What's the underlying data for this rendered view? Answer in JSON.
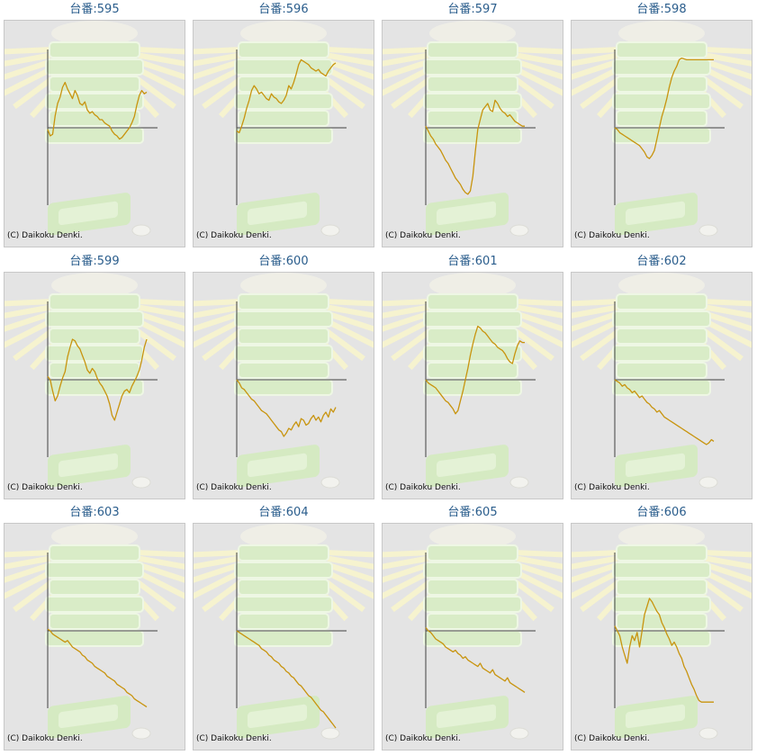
{
  "copyright": "(C) Daikoku Denki.",
  "line_color": "#c8940e",
  "axis_color": "#404040",
  "chart_data": [
    {
      "type": "line",
      "title": "台番:595",
      "x": [
        0,
        1,
        2,
        3,
        4,
        5,
        6,
        7,
        8,
        9,
        10,
        11,
        12,
        13,
        14,
        15,
        16,
        17,
        18,
        19,
        20,
        21,
        22,
        23,
        24,
        25,
        26,
        27,
        28,
        29,
        30,
        31,
        32,
        33,
        34,
        35,
        36,
        37,
        38,
        39,
        40
      ],
      "values": [
        -2,
        -10,
        -8,
        15,
        30,
        38,
        50,
        56,
        48,
        42,
        36,
        46,
        40,
        30,
        28,
        32,
        22,
        18,
        20,
        16,
        14,
        10,
        10,
        6,
        4,
        2,
        -4,
        -8,
        -10,
        -14,
        -12,
        -8,
        -4,
        0,
        6,
        14,
        28,
        40,
        46,
        42,
        44
      ]
    },
    {
      "type": "line",
      "title": "台番:596",
      "x": [
        0,
        1,
        2,
        3,
        4,
        5,
        6,
        7,
        8,
        9,
        10,
        11,
        12,
        13,
        14,
        15,
        16,
        17,
        18,
        19,
        20,
        21,
        22,
        23,
        24,
        25,
        26,
        27,
        28,
        29,
        30,
        31,
        32,
        33,
        34,
        35,
        36,
        37,
        38,
        39,
        40
      ],
      "values": [
        -4,
        -6,
        2,
        12,
        24,
        34,
        46,
        52,
        48,
        42,
        44,
        40,
        36,
        34,
        42,
        38,
        36,
        32,
        30,
        34,
        40,
        52,
        48,
        56,
        66,
        78,
        84,
        82,
        80,
        78,
        74,
        72,
        70,
        72,
        68,
        66,
        64,
        70,
        74,
        78,
        80
      ]
    },
    {
      "type": "line",
      "title": "台番:597",
      "x": [
        0,
        1,
        2,
        3,
        4,
        5,
        6,
        7,
        8,
        9,
        10,
        11,
        12,
        13,
        14,
        15,
        16,
        17,
        18,
        19,
        20,
        21,
        22,
        23,
        24,
        25,
        26,
        27,
        28,
        29,
        30,
        31,
        32,
        33,
        34,
        35,
        36,
        37,
        38,
        39,
        40
      ],
      "values": [
        2,
        -4,
        -10,
        -14,
        -20,
        -24,
        -28,
        -34,
        -40,
        -44,
        -50,
        -56,
        -62,
        -66,
        -70,
        -76,
        -80,
        -82,
        -78,
        -60,
        -30,
        -2,
        10,
        22,
        26,
        30,
        22,
        20,
        34,
        30,
        24,
        20,
        18,
        14,
        16,
        12,
        8,
        6,
        4,
        2,
        2
      ]
    },
    {
      "type": "line",
      "title": "台番:598",
      "x": [
        0,
        1,
        2,
        3,
        4,
        5,
        6,
        7,
        8,
        9,
        10,
        11,
        12,
        13,
        14,
        15,
        16,
        17,
        18,
        19,
        20,
        21,
        22,
        23,
        24,
        25,
        26,
        27,
        28,
        29,
        30,
        31,
        32,
        33,
        34,
        35,
        36,
        37,
        38,
        39,
        40
      ],
      "values": [
        0,
        -2,
        -6,
        -8,
        -10,
        -12,
        -14,
        -16,
        -18,
        -20,
        -22,
        -26,
        -30,
        -36,
        -38,
        -34,
        -28,
        -14,
        0,
        14,
        24,
        36,
        50,
        62,
        70,
        76,
        84,
        86,
        85,
        84,
        84,
        84,
        84,
        84,
        84,
        84,
        84,
        84,
        84,
        84,
        84
      ]
    },
    {
      "type": "line",
      "title": "台番:599",
      "x": [
        0,
        1,
        2,
        3,
        4,
        5,
        6,
        7,
        8,
        9,
        10,
        11,
        12,
        13,
        14,
        15,
        16,
        17,
        18,
        19,
        20,
        21,
        22,
        23,
        24,
        25,
        26,
        27,
        28,
        29,
        30,
        31,
        32,
        33,
        34,
        35,
        36,
        37,
        38,
        39,
        40
      ],
      "values": [
        4,
        0,
        -14,
        -26,
        -20,
        -8,
        2,
        10,
        28,
        40,
        50,
        48,
        42,
        38,
        30,
        22,
        12,
        8,
        14,
        10,
        2,
        -4,
        -8,
        -14,
        -20,
        -30,
        -44,
        -50,
        -40,
        -30,
        -20,
        -14,
        -12,
        -16,
        -8,
        -2,
        4,
        12,
        24,
        40,
        50
      ]
    },
    {
      "type": "line",
      "title": "台番:600",
      "x": [
        0,
        1,
        2,
        3,
        4,
        5,
        6,
        7,
        8,
        9,
        10,
        11,
        12,
        13,
        14,
        15,
        16,
        17,
        18,
        19,
        20,
        21,
        22,
        23,
        24,
        25,
        26,
        27,
        28,
        29,
        30,
        31,
        32,
        33,
        34,
        35,
        36,
        37,
        38,
        39,
        40
      ],
      "values": [
        0,
        -4,
        -10,
        -12,
        -16,
        -20,
        -24,
        -26,
        -30,
        -34,
        -38,
        -40,
        -42,
        -46,
        -50,
        -54,
        -58,
        -62,
        -64,
        -70,
        -66,
        -60,
        -62,
        -56,
        -52,
        -58,
        -48,
        -50,
        -56,
        -54,
        -48,
        -44,
        -50,
        -46,
        -52,
        -44,
        -40,
        -46,
        -36,
        -40,
        -34
      ]
    },
    {
      "type": "line",
      "title": "台番:601",
      "x": [
        0,
        1,
        2,
        3,
        4,
        5,
        6,
        7,
        8,
        9,
        10,
        11,
        12,
        13,
        14,
        15,
        16,
        17,
        18,
        19,
        20,
        21,
        22,
        23,
        24,
        25,
        26,
        27,
        28,
        29,
        30,
        31,
        32,
        33,
        34,
        35,
        36,
        37,
        38,
        39,
        40
      ],
      "values": [
        0,
        -4,
        -6,
        -8,
        -10,
        -14,
        -18,
        -22,
        -26,
        -28,
        -32,
        -36,
        -42,
        -38,
        -26,
        -14,
        0,
        14,
        30,
        44,
        56,
        66,
        64,
        60,
        58,
        54,
        50,
        46,
        44,
        40,
        38,
        36,
        32,
        26,
        22,
        20,
        32,
        42,
        48,
        46,
        46
      ]
    },
    {
      "type": "line",
      "title": "台番:602",
      "x": [
        0,
        1,
        2,
        3,
        4,
        5,
        6,
        7,
        8,
        9,
        10,
        11,
        12,
        13,
        14,
        15,
        16,
        17,
        18,
        19,
        20,
        21,
        22,
        23,
        24,
        25,
        26,
        27,
        28,
        29,
        30,
        31,
        32,
        33,
        34,
        35,
        36,
        37,
        38,
        39,
        40
      ],
      "values": [
        0,
        -2,
        -4,
        -8,
        -6,
        -10,
        -12,
        -16,
        -14,
        -18,
        -22,
        -20,
        -24,
        -28,
        -30,
        -34,
        -36,
        -40,
        -38,
        -42,
        -46,
        -48,
        -50,
        -52,
        -54,
        -56,
        -58,
        -60,
        -62,
        -64,
        -66,
        -68,
        -70,
        -72,
        -74,
        -76,
        -78,
        -80,
        -78,
        -74,
        -76
      ]
    },
    {
      "type": "line",
      "title": "台番:603",
      "x": [
        0,
        1,
        2,
        3,
        4,
        5,
        6,
        7,
        8,
        9,
        10,
        11,
        12,
        13,
        14,
        15,
        16,
        17,
        18,
        19,
        20,
        21,
        22,
        23,
        24,
        25,
        26,
        27,
        28,
        29,
        30,
        31,
        32,
        33,
        34,
        35,
        36,
        37,
        38,
        39,
        40
      ],
      "values": [
        2,
        0,
        -4,
        -6,
        -8,
        -10,
        -12,
        -14,
        -12,
        -16,
        -20,
        -22,
        -24,
        -26,
        -30,
        -32,
        -36,
        -38,
        -40,
        -44,
        -46,
        -48,
        -50,
        -52,
        -56,
        -58,
        -60,
        -62,
        -66,
        -68,
        -70,
        -72,
        -76,
        -78,
        -80,
        -84,
        -86,
        -88,
        -90,
        -92,
        -94
      ]
    },
    {
      "type": "line",
      "title": "台番:604",
      "x": [
        0,
        1,
        2,
        3,
        4,
        5,
        6,
        7,
        8,
        9,
        10,
        11,
        12,
        13,
        14,
        15,
        16,
        17,
        18,
        19,
        20,
        21,
        22,
        23,
        24,
        25,
        26,
        27,
        28,
        29,
        30,
        31,
        32,
        33,
        34,
        35,
        36,
        37,
        38,
        39,
        40
      ],
      "values": [
        0,
        -2,
        -4,
        -6,
        -8,
        -10,
        -12,
        -14,
        -16,
        -18,
        -22,
        -24,
        -26,
        -30,
        -32,
        -36,
        -38,
        -40,
        -44,
        -46,
        -50,
        -52,
        -56,
        -58,
        -62,
        -66,
        -68,
        -72,
        -76,
        -80,
        -82,
        -86,
        -90,
        -94,
        -98,
        -100,
        -104,
        -108,
        -112,
        -116,
        -120
      ]
    },
    {
      "type": "line",
      "title": "台番:605",
      "x": [
        0,
        1,
        2,
        3,
        4,
        5,
        6,
        7,
        8,
        9,
        10,
        11,
        12,
        13,
        14,
        15,
        16,
        17,
        18,
        19,
        20,
        21,
        22,
        23,
        24,
        25,
        26,
        27,
        28,
        29,
        30,
        31,
        32,
        33,
        34,
        35,
        36,
        37,
        38,
        39,
        40
      ],
      "values": [
        4,
        0,
        -2,
        -6,
        -10,
        -12,
        -14,
        -16,
        -20,
        -22,
        -24,
        -26,
        -24,
        -28,
        -30,
        -34,
        -32,
        -36,
        -38,
        -40,
        -42,
        -44,
        -40,
        -46,
        -48,
        -50,
        -52,
        -48,
        -54,
        -56,
        -58,
        -60,
        -62,
        -58,
        -64,
        -66,
        -68,
        -70,
        -72,
        -74,
        -76
      ]
    },
    {
      "type": "line",
      "title": "台番:606",
      "x": [
        0,
        1,
        2,
        3,
        4,
        5,
        6,
        7,
        8,
        9,
        10,
        11,
        12,
        13,
        14,
        15,
        16,
        17,
        18,
        19,
        20,
        21,
        22,
        23,
        24,
        25,
        26,
        27,
        28,
        29,
        30,
        31,
        32,
        33,
        34,
        35,
        36,
        37,
        38,
        39,
        40
      ],
      "values": [
        6,
        0,
        -6,
        -20,
        -30,
        -40,
        -20,
        -6,
        -12,
        -2,
        -20,
        0,
        20,
        30,
        40,
        36,
        30,
        24,
        20,
        10,
        4,
        -4,
        -10,
        -18,
        -14,
        -20,
        -28,
        -34,
        -44,
        -50,
        -58,
        -66,
        -72,
        -80,
        -86,
        -88,
        -88,
        -88,
        -88,
        -88,
        -88
      ]
    }
  ]
}
